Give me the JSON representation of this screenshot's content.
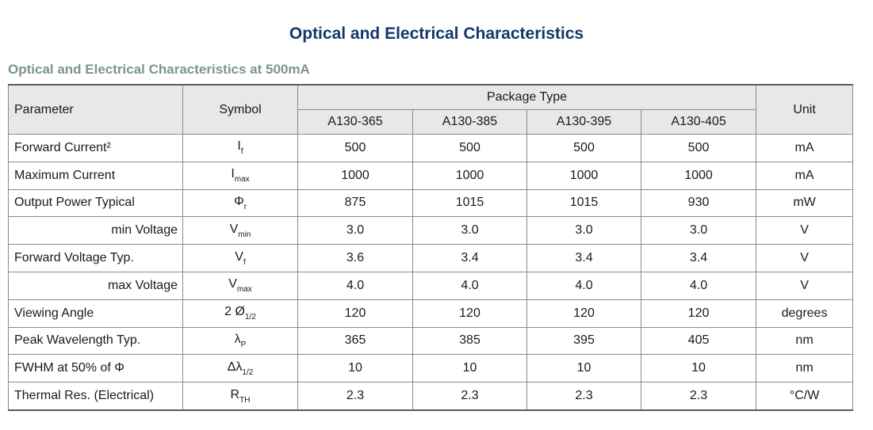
{
  "title": "Optical and Electrical Characteristics",
  "subtitle": "Optical and Electrical Characteristics at 500mA",
  "table": {
    "headers": {
      "parameter": "Parameter",
      "symbol": "Symbol",
      "package_type": "Package Type",
      "unit": "Unit",
      "packages": [
        "A130-365",
        "A130-385",
        "A130-395",
        "A130-405"
      ]
    },
    "rows": [
      {
        "parameter": "Forward Current²",
        "symbol": "I",
        "sub": "f",
        "values": [
          "500",
          "500",
          "500",
          "500"
        ],
        "unit": "mA"
      },
      {
        "parameter": "Maximum Current",
        "symbol": "I",
        "sub": "max",
        "values": [
          "1000",
          "1000",
          "1000",
          "1000"
        ],
        "unit": "mA"
      },
      {
        "parameter": "Output Power Typical",
        "symbol": "Φ",
        "sub": "r",
        "values": [
          "875",
          "1015",
          "1015",
          "930"
        ],
        "unit": "mW"
      },
      {
        "parameter": "min Voltage",
        "symbol": "V",
        "sub": "min",
        "values": [
          "3.0",
          "3.0",
          "3.0",
          "3.0"
        ],
        "unit": "V"
      },
      {
        "parameter": "Forward Voltage Typ.",
        "symbol": "V",
        "sub": "f",
        "values": [
          "3.6",
          "3.4",
          "3.4",
          "3.4"
        ],
        "unit": "V"
      },
      {
        "parameter": "max Voltage",
        "symbol": "V",
        "sub": "max",
        "values": [
          "4.0",
          "4.0",
          "4.0",
          "4.0"
        ],
        "unit": "V"
      },
      {
        "parameter": "Viewing Angle",
        "symbol": "2 Ø",
        "sub": "1/2",
        "values": [
          "120",
          "120",
          "120",
          "120"
        ],
        "unit": "degrees"
      },
      {
        "parameter": "Peak Wavelength Typ.",
        "symbol": "λ",
        "sub": "P",
        "values": [
          "365",
          "385",
          "395",
          "405"
        ],
        "unit": "nm"
      },
      {
        "parameter": "FWHM at 50% of Φ",
        "symbol": "Δλ",
        "sub": "1/2",
        "values": [
          "10",
          "10",
          "10",
          "10"
        ],
        "unit": "nm"
      },
      {
        "parameter": "Thermal Res. (Electrical)",
        "symbol": "R",
        "sub": "TH",
        "values": [
          "2.3",
          "2.3",
          "2.3",
          "2.3"
        ],
        "unit": "°C/W"
      }
    ]
  }
}
